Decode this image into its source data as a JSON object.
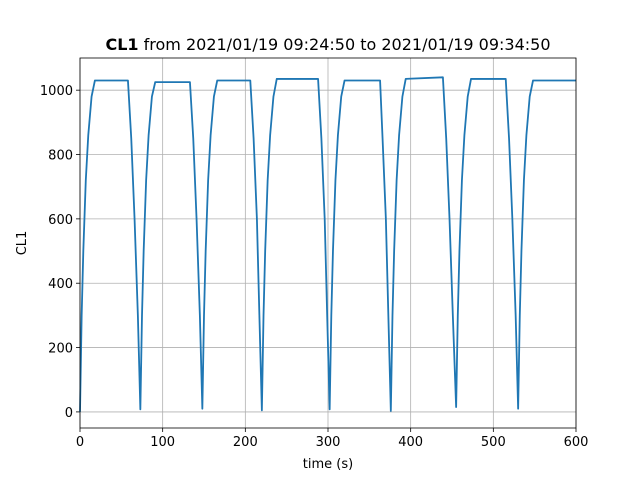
{
  "chart_data": {
    "type": "line",
    "title": {
      "bold": "CL1",
      "text": "from 2021/01/19 09:24:50 to 2021/01/19 09:34:50"
    },
    "xlabel": "time (s)",
    "ylabel": "CL1",
    "x": [
      0,
      2,
      4,
      7,
      10,
      14,
      18,
      58,
      62,
      66,
      70,
      73,
      75,
      77,
      80,
      83,
      87,
      91,
      133,
      137,
      141,
      145,
      148,
      150,
      152,
      155,
      158,
      162,
      166,
      206,
      210,
      214,
      217,
      220,
      222,
      224,
      227,
      230,
      234,
      238,
      288,
      292,
      296,
      299,
      302,
      304,
      306,
      309,
      312,
      316,
      320,
      363,
      366,
      370,
      373,
      376,
      378,
      380,
      383,
      386,
      390,
      394,
      439,
      443,
      447,
      451,
      455,
      457,
      459,
      462,
      465,
      469,
      473,
      515,
      519,
      523,
      527,
      530,
      532,
      534,
      537,
      540,
      544,
      548,
      600
    ],
    "series": [
      {
        "name": "CL1",
        "color": "#1f77b4",
        "values": [
          0,
          300,
          500,
          720,
          860,
          980,
          1030,
          1030,
          850,
          600,
          300,
          8,
          300,
          500,
          720,
          860,
          980,
          1025,
          1025,
          850,
          600,
          300,
          10,
          300,
          500,
          720,
          860,
          980,
          1030,
          1030,
          850,
          600,
          300,
          5,
          300,
          500,
          720,
          860,
          980,
          1035,
          1035,
          850,
          600,
          300,
          8,
          300,
          500,
          720,
          860,
          980,
          1030,
          1030,
          850,
          600,
          300,
          3,
          300,
          500,
          720,
          860,
          980,
          1035,
          1040,
          850,
          600,
          300,
          15,
          300,
          500,
          720,
          860,
          980,
          1035,
          1035,
          850,
          600,
          300,
          10,
          300,
          500,
          720,
          860,
          980,
          1030,
          1030
        ]
      }
    ],
    "xlim": [
      0,
      600
    ],
    "ylim": [
      -50,
      1100
    ],
    "xticks": [
      0,
      100,
      200,
      300,
      400,
      500,
      600
    ],
    "yticks": [
      0,
      200,
      400,
      600,
      800,
      1000
    ],
    "grid": true
  }
}
